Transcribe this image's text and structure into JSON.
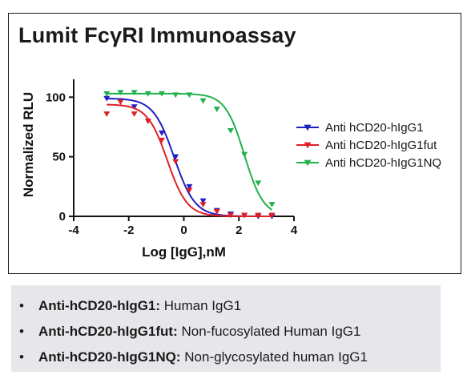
{
  "chart_data": {
    "type": "line",
    "title": "Lumit FcγRI Immunoassay",
    "xlabel": "Log [IgG],nM",
    "ylabel": "Normalized RLU",
    "xlim": [
      -4,
      4
    ],
    "ylim": [
      0,
      115
    ],
    "x_ticks": [
      -4,
      -2,
      0,
      2,
      4
    ],
    "y_ticks": [
      0,
      50,
      100
    ],
    "grid": false,
    "legend_position": "right",
    "series": [
      {
        "name": "Anti hCD20-hIgG1",
        "color": "#1f1fc4",
        "marker": "triangle-down",
        "top": 99,
        "bottom": 0,
        "logEC50": -0.35,
        "hill": 1.15,
        "x": [
          -2.8,
          -2.3,
          -1.8,
          -1.3,
          -0.8,
          -0.3,
          0.2,
          0.7,
          1.2,
          1.7,
          2.2,
          2.7,
          3.2
        ],
        "y": [
          99,
          97,
          92,
          80,
          70,
          50,
          25,
          13,
          5,
          2,
          1,
          0,
          0
        ]
      },
      {
        "name": "Anti hCD20-hIgG1fut",
        "color": "#e01f26",
        "marker": "triangle-down",
        "top": 94,
        "bottom": 0,
        "logEC50": -0.6,
        "hill": 1.2,
        "x": [
          -2.8,
          -2.3,
          -1.8,
          -1.3,
          -0.8,
          -0.3,
          0.2,
          0.7,
          1.2,
          1.7,
          2.2,
          2.7,
          3.2
        ],
        "y": [
          86,
          96,
          86,
          80,
          64,
          46,
          22,
          10,
          4,
          1,
          1,
          1,
          1
        ]
      },
      {
        "name": "Anti hCD20-hIgG1NQ",
        "color": "#22b14c",
        "marker": "triangle-down",
        "top": 103,
        "bottom": 0,
        "logEC50": 2.2,
        "hill": 1.25,
        "x": [
          -2.8,
          -2.3,
          -1.8,
          -1.3,
          -0.8,
          -0.3,
          0.2,
          0.7,
          1.2,
          1.7,
          2.2,
          2.7,
          3.2
        ],
        "y": [
          103,
          104,
          104,
          103,
          103,
          102,
          102,
          97,
          90,
          72,
          52,
          28,
          10
        ]
      }
    ]
  },
  "definitions": [
    {
      "term": "Anti-hCD20-hIgG1:",
      "desc": "Human IgG1"
    },
    {
      "term": "Anti-hCD20-hIgG1fut:",
      "desc": "Non-fucosylated Human IgG1"
    },
    {
      "term": "Anti-hCD20-hIgG1NQ:",
      "desc": "Non-glycosylated human IgG1"
    }
  ],
  "bullet_symbol": "•"
}
